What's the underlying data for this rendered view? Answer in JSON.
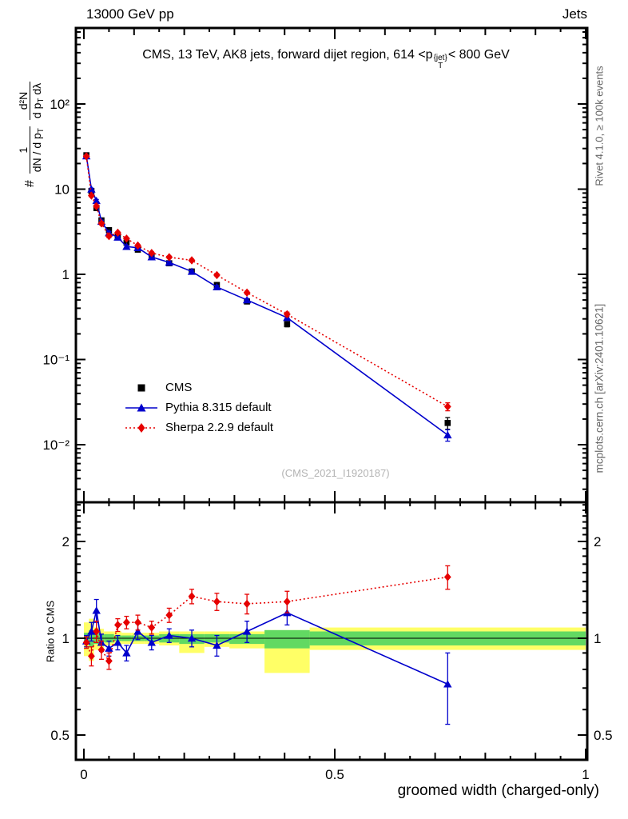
{
  "header": {
    "left": "13000 GeV pp",
    "right": "Jets"
  },
  "plot_title": {
    "pre": "CMS, 13 TeV, AK8 jets, forward dijet region, 614 <p",
    "sup": "{jet}",
    "sub": "T",
    "post": "< 800 GeV"
  },
  "right_margin": {
    "rivet": "Rivet 4.1.0, ≥ 100k events",
    "mcplots": "mcplots.cern.ch [arXiv:2401.10621]"
  },
  "watermark": "(CMS_2021_I1920187)",
  "ylabel_main": {
    "hash": "#",
    "f1_num": "1",
    "f1_den": "dN / d p",
    "f1_den_sub": "T",
    "f2_num": "d²N",
    "f2_den_a": "d p",
    "f2_den_sub": "T",
    "f2_den_b": " dλ"
  },
  "ratio_label": "Ratio to CMS",
  "xlabel": "groomed width (charged-only)",
  "legend": {
    "items": [
      {
        "label": "CMS"
      },
      {
        "label": "Pythia 8.315 default"
      },
      {
        "label": "Sherpa 2.2.9 default"
      }
    ]
  },
  "chart_data": {
    "type": "line",
    "title": "CMS, 13 TeV, AK8 jets, forward dijet region, 614 <p_T^{jet} < 800 GeV",
    "xlabel": "groomed width (charged-only)",
    "ylabel": "# 1/(dN/dp_T) d²N/(dp_T dλ)",
    "ratio_ylabel": "Ratio to CMS",
    "x_log": false,
    "y_log_main": true,
    "y_log_ratio": true,
    "xlim": [
      -0.016,
      1.003
    ],
    "ylim_main": [
      0.0022,
      780
    ],
    "ylim_ratio": [
      0.42,
      2.65
    ],
    "legend_position": "center-left",
    "grid": false,
    "bin_edges": [
      0,
      0.01,
      0.02,
      0.03,
      0.04,
      0.06,
      0.075,
      0.095,
      0.12,
      0.15,
      0.19,
      0.24,
      0.29,
      0.36,
      0.45,
      1.0
    ],
    "x": [
      0.005,
      0.015,
      0.025,
      0.035,
      0.05,
      0.0675,
      0.085,
      0.1075,
      0.135,
      0.17,
      0.215,
      0.265,
      0.325,
      0.405,
      0.725
    ],
    "series": [
      {
        "name": "CMS",
        "color": "#000000",
        "marker": "square",
        "line": "none",
        "values": [
          25,
          9.5,
          6.0,
          4.3,
          3.3,
          2.8,
          2.35,
          1.95,
          1.65,
          1.35,
          1.08,
          0.75,
          0.48,
          0.26,
          0.018
        ],
        "errors": [
          0.7,
          0.35,
          0.25,
          0.18,
          0.14,
          0.11,
          0.1,
          0.08,
          0.07,
          0.06,
          0.05,
          0.035,
          0.025,
          0.018,
          0.0028
        ]
      },
      {
        "name": "Pythia 8.315 default",
        "color": "#0000cc",
        "marker": "triangle",
        "line": "solid",
        "values": [
          24.5,
          9.98,
          7.32,
          4.17,
          3.07,
          2.72,
          2.12,
          2.05,
          1.6,
          1.38,
          1.08,
          0.71,
          0.5,
          0.31,
          0.013
        ],
        "errors": [
          0.6,
          0.3,
          0.25,
          0.15,
          0.12,
          0.1,
          0.08,
          0.07,
          0.06,
          0.05,
          0.04,
          0.03,
          0.02,
          0.015,
          0.002
        ]
      },
      {
        "name": "Sherpa 2.2.9 default",
        "color": "#e60000",
        "marker": "diamond",
        "line": "dotted",
        "values": [
          24.3,
          8.4,
          6.3,
          3.96,
          2.81,
          3.08,
          2.63,
          2.18,
          1.78,
          1.59,
          1.46,
          0.98,
          0.61,
          0.34,
          0.028
        ],
        "errors": [
          0.6,
          0.3,
          0.25,
          0.15,
          0.12,
          0.1,
          0.08,
          0.07,
          0.06,
          0.05,
          0.05,
          0.035,
          0.025,
          0.02,
          0.003
        ]
      }
    ],
    "ratio": {
      "reference": 1,
      "series": [
        {
          "name": "Pythia 8.315 default",
          "color": "#0000cc",
          "marker": "triangle",
          "line": "solid",
          "values": [
            0.98,
            1.05,
            1.22,
            0.97,
            0.93,
            0.97,
            0.9,
            1.05,
            0.97,
            1.02,
            1.0,
            0.95,
            1.05,
            1.2,
            0.72
          ],
          "errors": [
            0.04,
            0.07,
            0.1,
            0.06,
            0.05,
            0.05,
            0.05,
            0.06,
            0.05,
            0.05,
            0.06,
            0.07,
            0.08,
            0.1,
            0.18
          ]
        },
        {
          "name": "Sherpa 2.2.9 default",
          "color": "#e60000",
          "marker": "diamond",
          "line": "dotted",
          "values": [
            0.97,
            0.88,
            1.05,
            0.92,
            0.85,
            1.1,
            1.12,
            1.12,
            1.08,
            1.18,
            1.35,
            1.3,
            1.28,
            1.3,
            1.55
          ],
          "errors": [
            0.04,
            0.06,
            0.08,
            0.06,
            0.05,
            0.05,
            0.05,
            0.06,
            0.05,
            0.06,
            0.07,
            0.08,
            0.09,
            0.1,
            0.13
          ]
        }
      ],
      "bands": {
        "yellow": {
          "color": "#ffff66",
          "ranges": [
            [
              0.88,
              1.12
            ],
            [
              0.85,
              1.15
            ],
            [
              0.92,
              1.08
            ],
            [
              0.93,
              1.07
            ],
            [
              0.95,
              1.05
            ],
            [
              0.95,
              1.05
            ],
            [
              0.96,
              1.04
            ],
            [
              0.96,
              1.04
            ],
            [
              0.96,
              1.04
            ],
            [
              0.95,
              1.05
            ],
            [
              0.9,
              1.05
            ],
            [
              0.94,
              1.05
            ],
            [
              0.93,
              1.05
            ],
            [
              0.78,
              1.06
            ],
            [
              0.92,
              1.08
            ]
          ]
        },
        "green": {
          "color": "#62d962",
          "ranges": [
            [
              0.96,
              1.04
            ],
            [
              0.94,
              1.06
            ],
            [
              0.96,
              1.04
            ],
            [
              0.97,
              1.03
            ],
            [
              0.97,
              1.03
            ],
            [
              0.98,
              1.02
            ],
            [
              0.98,
              1.02
            ],
            [
              0.98,
              1.02
            ],
            [
              0.98,
              1.02
            ],
            [
              0.97,
              1.03
            ],
            [
              0.96,
              1.03
            ],
            [
              0.97,
              1.03
            ],
            [
              0.96,
              1.03
            ],
            [
              0.93,
              1.06
            ],
            [
              0.95,
              1.05
            ]
          ]
        }
      }
    },
    "yticks_main": [
      {
        "value": 100,
        "label": "10²"
      },
      {
        "value": 10,
        "label": "10"
      },
      {
        "value": 1,
        "label": "1"
      },
      {
        "value": 0.1,
        "label": "10⁻¹"
      },
      {
        "value": 0.01,
        "label": "10⁻²"
      }
    ],
    "yticks_ratio": [
      {
        "value": 2,
        "label": "2"
      },
      {
        "value": 1,
        "label": "1"
      },
      {
        "value": 0.5,
        "label": "0.5"
      }
    ],
    "xticks": [
      {
        "value": 0,
        "label": "0"
      },
      {
        "value": 0.5,
        "label": "0.5"
      },
      {
        "value": 1,
        "label": "1"
      }
    ]
  }
}
